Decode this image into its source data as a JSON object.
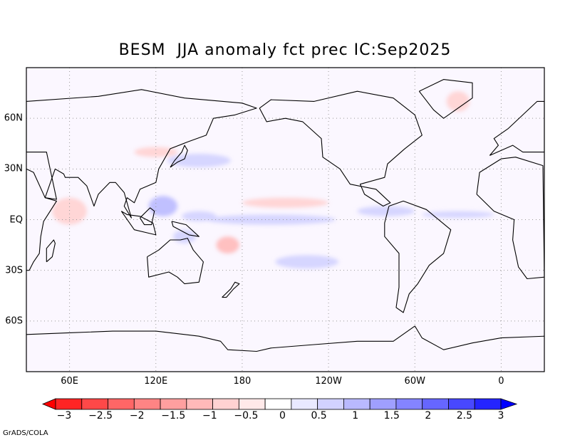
{
  "title": "BESM  JJA anomaly fct prec IC:Sep2025",
  "credit": "GrADS/COLA",
  "map": {
    "lon_range": [
      30,
      390
    ],
    "lat_range": [
      -90,
      90
    ],
    "lon_ticks": [
      {
        "label": "60E",
        "lon": 60
      },
      {
        "label": "120E",
        "lon": 120
      },
      {
        "label": "180",
        "lon": 180
      },
      {
        "label": "120W",
        "lon": 240
      },
      {
        "label": "60W",
        "lon": 300
      },
      {
        "label": "0",
        "lon": 360
      }
    ],
    "lat_ticks": [
      {
        "label": "60N",
        "lat": 60
      },
      {
        "label": "30N",
        "lat": 30
      },
      {
        "label": "EQ",
        "lat": 0
      },
      {
        "label": "30S",
        "lat": -30
      },
      {
        "label": "60S",
        "lat": -60
      }
    ],
    "gridlines": "dotted",
    "anomalies": [
      {
        "sign": "wet",
        "lon": 125,
        "lat": 8,
        "rlon": 10,
        "rlat": 6,
        "level": 2
      },
      {
        "sign": "wet",
        "lon": 150,
        "lat": 2,
        "rlon": 12,
        "rlat": 3,
        "level": 1
      },
      {
        "sign": "wet",
        "lon": 200,
        "lat": 0,
        "rlon": 45,
        "rlat": 3,
        "level": 1
      },
      {
        "sign": "wet",
        "lon": 280,
        "lat": 5,
        "rlon": 20,
        "rlat": 3,
        "level": 1
      },
      {
        "sign": "wet",
        "lon": 330,
        "lat": 3,
        "rlon": 25,
        "rlat": 2,
        "level": 1
      },
      {
        "sign": "wet",
        "lon": 225,
        "lat": -25,
        "rlon": 22,
        "rlat": 4,
        "level": 1
      },
      {
        "sign": "wet",
        "lon": 150,
        "lat": 35,
        "rlon": 22,
        "rlat": 4,
        "level": 1
      },
      {
        "sign": "wet",
        "lon": 140,
        "lat": -10,
        "rlon": 8,
        "rlat": 4,
        "level": 1
      },
      {
        "sign": "dry",
        "lon": 210,
        "lat": 10,
        "rlon": 30,
        "rlat": 3,
        "level": 1
      },
      {
        "sign": "dry",
        "lon": 170,
        "lat": -15,
        "rlon": 8,
        "rlat": 5,
        "level": 2
      },
      {
        "sign": "dry",
        "lon": 60,
        "lat": 5,
        "rlon": 12,
        "rlat": 8,
        "level": 1
      },
      {
        "sign": "dry",
        "lon": 120,
        "lat": 40,
        "rlon": 15,
        "rlat": 3,
        "level": 1
      },
      {
        "sign": "dry",
        "lon": 330,
        "lat": 70,
        "rlon": 8,
        "rlat": 6,
        "level": 1
      }
    ],
    "land_outlines": [
      {
        "name": "north-america",
        "points": [
          [
            192,
            66
          ],
          [
            200,
            71
          ],
          [
            230,
            70
          ],
          [
            260,
            76
          ],
          [
            285,
            72
          ],
          [
            300,
            62
          ],
          [
            305,
            50
          ],
          [
            293,
            42
          ],
          [
            281,
            33
          ],
          [
            279,
            25
          ],
          [
            262,
            21
          ],
          [
            265,
            15
          ],
          [
            278,
            8
          ],
          [
            283,
            10
          ],
          [
            273,
            18
          ],
          [
            255,
            21
          ],
          [
            248,
            30
          ],
          [
            236,
            37
          ],
          [
            235,
            48
          ],
          [
            222,
            58
          ],
          [
            210,
            60
          ],
          [
            197,
            58
          ],
          [
            192,
            66
          ]
        ]
      },
      {
        "name": "south-america",
        "points": [
          [
            282,
            8
          ],
          [
            292,
            11
          ],
          [
            308,
            6
          ],
          [
            325,
            -6
          ],
          [
            320,
            -20
          ],
          [
            310,
            -27
          ],
          [
            302,
            -38
          ],
          [
            296,
            -44
          ],
          [
            292,
            -55
          ],
          [
            287,
            -52
          ],
          [
            289,
            -40
          ],
          [
            289,
            -20
          ],
          [
            279,
            -10
          ],
          [
            279,
            -2
          ],
          [
            282,
            8
          ]
        ]
      },
      {
        "name": "greenland",
        "points": [
          [
            303,
            76
          ],
          [
            320,
            83
          ],
          [
            340,
            81
          ],
          [
            340,
            72
          ],
          [
            320,
            60
          ],
          [
            313,
            65
          ],
          [
            303,
            76
          ]
        ]
      },
      {
        "name": "africa",
        "points": [
          [
            343,
            15
          ],
          [
            345,
            28
          ],
          [
            360,
            36
          ],
          [
            370,
            37
          ],
          [
            389,
            32
          ],
          [
            390,
            -34
          ],
          [
            378,
            -35
          ],
          [
            372,
            -28
          ],
          [
            368,
            -12
          ],
          [
            369,
            0
          ],
          [
            355,
            5
          ],
          [
            343,
            15
          ]
        ]
      },
      {
        "name": "europe",
        "points": [
          [
            352,
            38
          ],
          [
            358,
            44
          ],
          [
            355,
            48
          ],
          [
            365,
            54
          ],
          [
            370,
            58
          ],
          [
            385,
            70
          ],
          [
            390,
            70
          ],
          [
            390,
            40
          ],
          [
            375,
            40
          ],
          [
            368,
            44
          ],
          [
            352,
            38
          ]
        ]
      },
      {
        "name": "asia",
        "points": [
          [
            30,
            70
          ],
          [
            80,
            73
          ],
          [
            110,
            77
          ],
          [
            140,
            72
          ],
          [
            180,
            69
          ],
          [
            190,
            66
          ],
          [
            175,
            62
          ],
          [
            160,
            60
          ],
          [
            155,
            50
          ],
          [
            142,
            46
          ],
          [
            130,
            42
          ],
          [
            122,
            30
          ],
          [
            120,
            22
          ],
          [
            109,
            18
          ],
          [
            105,
            10
          ],
          [
            100,
            13
          ],
          [
            98,
            8
          ],
          [
            103,
            1
          ],
          [
            98,
            16
          ],
          [
            92,
            22
          ],
          [
            88,
            22
          ],
          [
            80,
            15
          ],
          [
            77,
            8
          ],
          [
            72,
            20
          ],
          [
            66,
            25
          ],
          [
            57,
            25
          ],
          [
            56,
            27
          ],
          [
            50,
            30
          ],
          [
            43,
            13
          ],
          [
            51,
            12
          ],
          [
            44,
            40
          ],
          [
            30,
            40
          ],
          [
            30,
            70
          ]
        ]
      },
      {
        "name": "arabia-east-africa",
        "points": [
          [
            30,
            30
          ],
          [
            35,
            28
          ],
          [
            43,
            13
          ],
          [
            51,
            11
          ],
          [
            42,
            -1
          ],
          [
            40,
            -10
          ],
          [
            39,
            -20
          ],
          [
            35,
            -25
          ],
          [
            32,
            -30
          ],
          [
            30,
            -30
          ],
          [
            30,
            30
          ]
        ]
      },
      {
        "name": "australia",
        "points": [
          [
            114,
            -22
          ],
          [
            122,
            -18
          ],
          [
            130,
            -12
          ],
          [
            137,
            -12
          ],
          [
            142,
            -11
          ],
          [
            146,
            -18
          ],
          [
            153,
            -25
          ],
          [
            150,
            -37
          ],
          [
            140,
            -38
          ],
          [
            135,
            -34
          ],
          [
            129,
            -31
          ],
          [
            115,
            -34
          ],
          [
            114,
            -22
          ]
        ]
      },
      {
        "name": "indonesia",
        "points": [
          [
            96,
            5
          ],
          [
            105,
            -6
          ],
          [
            115,
            -8
          ],
          [
            120,
            -9
          ],
          [
            118,
            -2
          ],
          [
            109,
            2
          ],
          [
            100,
            3
          ],
          [
            96,
            5
          ]
        ]
      },
      {
        "name": "borneo",
        "points": [
          [
            109,
            1
          ],
          [
            112,
            -3
          ],
          [
            117,
            -3
          ],
          [
            119,
            5
          ],
          [
            116,
            7
          ],
          [
            110,
            2
          ],
          [
            109,
            1
          ]
        ]
      },
      {
        "name": "new-guinea",
        "points": [
          [
            131,
            -1
          ],
          [
            141,
            -3
          ],
          [
            150,
            -10
          ],
          [
            143,
            -9
          ],
          [
            132,
            -4
          ],
          [
            131,
            -1
          ]
        ]
      },
      {
        "name": "japan",
        "points": [
          [
            130,
            31
          ],
          [
            135,
            34
          ],
          [
            140,
            36
          ],
          [
            142,
            41
          ],
          [
            140,
            44
          ],
          [
            138,
            40
          ],
          [
            133,
            35
          ],
          [
            130,
            31
          ]
        ]
      },
      {
        "name": "new-zealand",
        "points": [
          [
            166,
            -46
          ],
          [
            172,
            -41
          ],
          [
            175,
            -37
          ],
          [
            178,
            -38
          ],
          [
            174,
            -41
          ],
          [
            169,
            -46
          ],
          [
            166,
            -46
          ]
        ]
      },
      {
        "name": "madagascar",
        "points": [
          [
            44,
            -25
          ],
          [
            48,
            -22
          ],
          [
            50,
            -14
          ],
          [
            49,
            -12
          ],
          [
            44,
            -17
          ],
          [
            44,
            -25
          ]
        ]
      },
      {
        "name": "antarctica",
        "points": [
          [
            30,
            -68
          ],
          [
            60,
            -67
          ],
          [
            90,
            -66
          ],
          [
            120,
            -66
          ],
          [
            150,
            -69
          ],
          [
            165,
            -72
          ],
          [
            170,
            -77
          ],
          [
            190,
            -78
          ],
          [
            200,
            -76
          ],
          [
            230,
            -74
          ],
          [
            260,
            -72
          ],
          [
            285,
            -72
          ],
          [
            300,
            -63
          ],
          [
            305,
            -70
          ],
          [
            320,
            -77
          ],
          [
            340,
            -73
          ],
          [
            360,
            -70
          ],
          [
            390,
            -69
          ]
        ]
      }
    ]
  },
  "colorbar": {
    "colors": [
      "#ff0000",
      "#ff2424",
      "#ff4848",
      "#ff6666",
      "#ff8484",
      "#ff9f9f",
      "#ffb9b9",
      "#ffd2d2",
      "#ffe9e9",
      "#ffffff",
      "#e9e9ff",
      "#d2d2ff",
      "#b9b9ff",
      "#9f9fff",
      "#8484ff",
      "#6666ff",
      "#4848ff",
      "#2424ff",
      "#0000ff"
    ],
    "tick_labels": [
      "−3",
      "−2.5",
      "−2",
      "−1.5",
      "−1",
      "−0.5",
      "0",
      "0.5",
      "1",
      "1.5",
      "2",
      "2.5",
      "3"
    ],
    "range": [
      -3,
      3
    ]
  }
}
